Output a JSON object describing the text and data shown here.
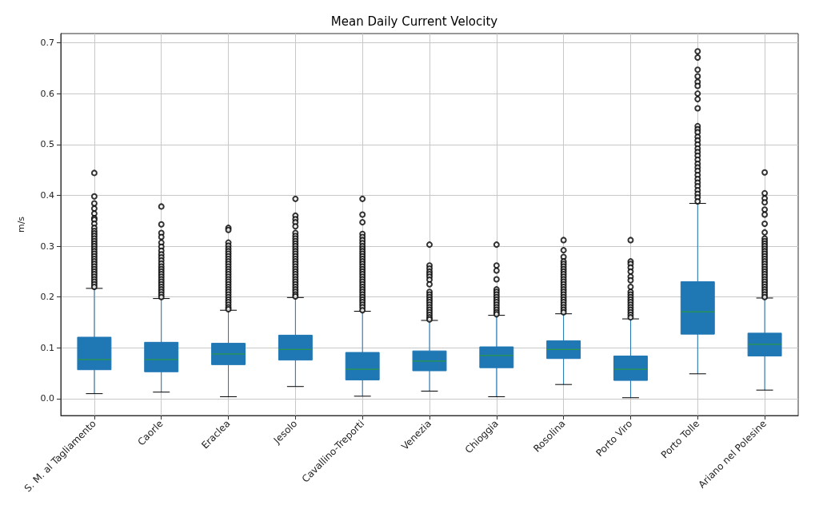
{
  "chart_data": {
    "type": "box",
    "title": "Mean Daily Current Velocity",
    "ylabel": "m/s",
    "categories": [
      "S. M. al Tagliamento",
      "Caorle",
      "Eraclea",
      "Jesolo",
      "Cavallino-Treporti",
      "Venezia",
      "Chioggia",
      "Rosolina",
      "Porto Viro",
      "Porto Tolle",
      "Ariano nel Polesine"
    ],
    "series": [
      {
        "color": "#1f77b4",
        "boxes": [
          {
            "low": 0.01,
            "q1": 0.057,
            "median": 0.077,
            "q3": 0.121,
            "high": 0.217,
            "outliers": [
              0.444,
              0.398,
              0.384,
              0.374,
              0.364,
              0.355,
              0.352,
              0.344,
              0.336,
              0.33,
              0.325,
              0.32,
              0.315,
              0.31,
              0.305,
              0.3,
              0.295,
              0.29,
              0.285,
              0.28,
              0.275,
              0.27,
              0.265,
              0.26,
              0.255,
              0.25,
              0.245,
              0.24,
              0.235,
              0.23,
              0.225,
              0.22
            ]
          },
          {
            "low": 0.013,
            "q1": 0.053,
            "median": 0.077,
            "q3": 0.111,
            "high": 0.197,
            "outliers": [
              0.378,
              0.343,
              0.326,
              0.318,
              0.307,
              0.299,
              0.291,
              0.284,
              0.278,
              0.272,
              0.266,
              0.26,
              0.255,
              0.25,
              0.245,
              0.24,
              0.235,
              0.23,
              0.225,
              0.22,
              0.215,
              0.21,
              0.205,
              0.2
            ]
          },
          {
            "low": 0.004,
            "q1": 0.067,
            "median": 0.088,
            "q3": 0.109,
            "high": 0.174,
            "outliers": [
              0.336,
              0.332,
              0.307,
              0.301,
              0.295,
              0.29,
              0.285,
              0.28,
              0.275,
              0.27,
              0.265,
              0.26,
              0.255,
              0.25,
              0.245,
              0.24,
              0.235,
              0.23,
              0.225,
              0.22,
              0.215,
              0.21,
              0.205,
              0.2,
              0.195,
              0.19,
              0.185,
              0.18,
              0.176
            ]
          },
          {
            "low": 0.024,
            "q1": 0.076,
            "median": 0.097,
            "q3": 0.125,
            "high": 0.199,
            "outliers": [
              0.393,
              0.36,
              0.353,
              0.347,
              0.339,
              0.326,
              0.32,
              0.315,
              0.31,
              0.305,
              0.3,
              0.295,
              0.29,
              0.285,
              0.28,
              0.275,
              0.27,
              0.265,
              0.26,
              0.255,
              0.25,
              0.245,
              0.24,
              0.235,
              0.23,
              0.225,
              0.22,
              0.215,
              0.21,
              0.205,
              0.201
            ]
          },
          {
            "low": 0.005,
            "q1": 0.037,
            "median": 0.058,
            "q3": 0.091,
            "high": 0.172,
            "outliers": [
              0.393,
              0.362,
              0.347,
              0.324,
              0.318,
              0.312,
              0.306,
              0.3,
              0.295,
              0.29,
              0.285,
              0.28,
              0.275,
              0.27,
              0.265,
              0.26,
              0.255,
              0.25,
              0.245,
              0.24,
              0.235,
              0.23,
              0.225,
              0.22,
              0.215,
              0.21,
              0.205,
              0.2,
              0.195,
              0.19,
              0.185,
              0.18,
              0.174
            ]
          },
          {
            "low": 0.015,
            "q1": 0.055,
            "median": 0.074,
            "q3": 0.094,
            "high": 0.154,
            "outliers": [
              0.303,
              0.262,
              0.256,
              0.25,
              0.245,
              0.24,
              0.234,
              0.225,
              0.21,
              0.205,
              0.2,
              0.195,
              0.19,
              0.185,
              0.18,
              0.175,
              0.17,
              0.165,
              0.16,
              0.156
            ]
          },
          {
            "low": 0.004,
            "q1": 0.061,
            "median": 0.085,
            "q3": 0.102,
            "high": 0.164,
            "outliers": [
              0.303,
              0.262,
              0.252,
              0.235,
              0.215,
              0.21,
              0.205,
              0.2,
              0.195,
              0.19,
              0.185,
              0.18,
              0.175,
              0.17,
              0.166
            ]
          },
          {
            "low": 0.028,
            "q1": 0.079,
            "median": 0.097,
            "q3": 0.114,
            "high": 0.167,
            "outliers": [
              0.312,
              0.292,
              0.279,
              0.27,
              0.265,
              0.26,
              0.255,
              0.25,
              0.245,
              0.24,
              0.235,
              0.23,
              0.225,
              0.22,
              0.215,
              0.21,
              0.205,
              0.2,
              0.195,
              0.19,
              0.185,
              0.18,
              0.175,
              0.17
            ]
          },
          {
            "low": 0.002,
            "q1": 0.036,
            "median": 0.058,
            "q3": 0.084,
            "high": 0.157,
            "outliers": [
              0.312,
              0.27,
              0.265,
              0.258,
              0.25,
              0.24,
              0.233,
              0.22,
              0.21,
              0.205,
              0.2,
              0.195,
              0.19,
              0.185,
              0.18,
              0.175,
              0.17,
              0.165,
              0.16
            ]
          },
          {
            "low": 0.049,
            "q1": 0.127,
            "median": 0.171,
            "q3": 0.23,
            "high": 0.384,
            "outliers": [
              0.683,
              0.671,
              0.647,
              0.634,
              0.623,
              0.615,
              0.6,
              0.589,
              0.571,
              0.536,
              0.53,
              0.524,
              0.515,
              0.508,
              0.5,
              0.492,
              0.485,
              0.478,
              0.47,
              0.462,
              0.455,
              0.448,
              0.44,
              0.432,
              0.425,
              0.418,
              0.41,
              0.403,
              0.396,
              0.388
            ]
          },
          {
            "low": 0.017,
            "q1": 0.084,
            "median": 0.107,
            "q3": 0.129,
            "high": 0.198,
            "outliers": [
              0.445,
              0.404,
              0.394,
              0.386,
              0.372,
              0.362,
              0.344,
              0.327,
              0.315,
              0.31,
              0.305,
              0.3,
              0.295,
              0.29,
              0.285,
              0.28,
              0.275,
              0.27,
              0.265,
              0.26,
              0.255,
              0.25,
              0.245,
              0.24,
              0.235,
              0.23,
              0.225,
              0.22,
              0.215,
              0.21,
              0.205,
              0.2
            ]
          }
        ]
      }
    ],
    "ylim": [
      -0.033,
      0.718
    ],
    "yticks": [
      {
        "value": 0,
        "label": "0.0"
      },
      0.1,
      0.2,
      0.3,
      0.4,
      0.5,
      0.6,
      0.7
    ],
    "grid": true,
    "marker": "circle"
  }
}
